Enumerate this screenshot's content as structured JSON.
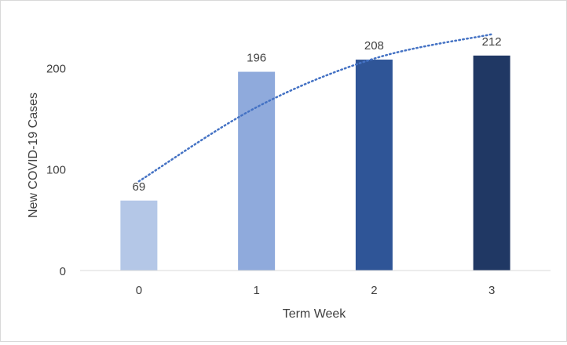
{
  "chart_data": {
    "type": "bar",
    "title": "",
    "xlabel": "Term Week",
    "ylabel": "New COVID-19 Cases",
    "categories": [
      "0",
      "1",
      "2",
      "3"
    ],
    "values": [
      69,
      196,
      208,
      212
    ],
    "data_labels": [
      "69",
      "196",
      "208",
      "212"
    ],
    "bar_colors": [
      "#b4c7e7",
      "#8faadc",
      "#2f5597",
      "#203864"
    ],
    "ylim": [
      0,
      232
    ],
    "yticks": [
      0,
      100,
      200
    ],
    "ytick_labels": [
      "0",
      "100",
      "200"
    ],
    "grid": false,
    "legend": "none",
    "trendline": {
      "type": "logarithmic",
      "style": "dotted",
      "color": "#4472c4",
      "points": [
        [
          0,
          88
        ],
        [
          1,
          161
        ],
        [
          2,
          209
        ],
        [
          3,
          233
        ]
      ]
    }
  }
}
